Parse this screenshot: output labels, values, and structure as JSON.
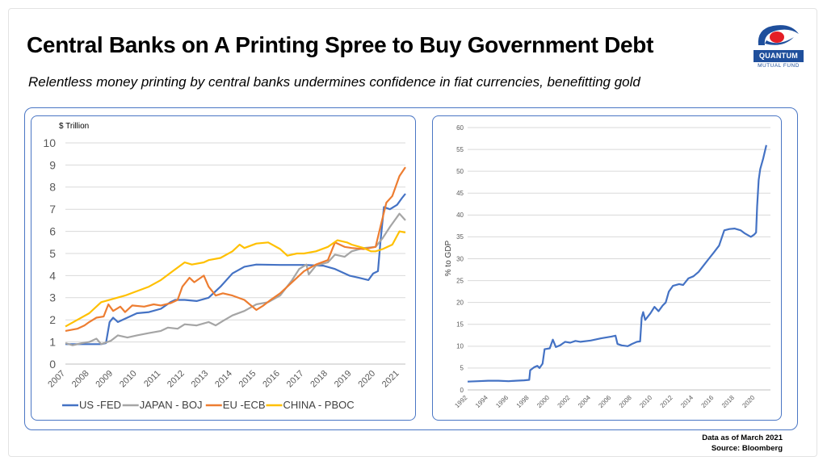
{
  "header": {
    "title": "Central Banks on A Printing Spree to Buy Government Debt",
    "subtitle": "Relentless money printing by central banks undermines confidence in fiat currencies, benefitting gold"
  },
  "logo": {
    "name": "QUANTUM",
    "tagline": "MUTUAL FUND",
    "colors": {
      "blue": "#1f4f9c",
      "red": "#e41e26"
    }
  },
  "footer": {
    "note": "Data as of March 2021",
    "source": "Source: Bloomberg"
  },
  "colors": {
    "panel_border": "#4a76c4",
    "grid": "#d9d9d9"
  },
  "chart_data": [
    {
      "type": "line",
      "ylabel": "$ Trillion",
      "xlim": [
        2007,
        2021.25
      ],
      "ylim": [
        0,
        10
      ],
      "yticks": [
        0,
        1,
        2,
        3,
        4,
        5,
        6,
        7,
        8,
        9,
        10
      ],
      "xticks": [
        "2007",
        "2008",
        "2009",
        "2010",
        "2011",
        "2012",
        "2013",
        "2014",
        "2015",
        "2016",
        "2017",
        "2018",
        "2019",
        "2020",
        "2021"
      ],
      "legend": "bottom",
      "grid": true,
      "series": [
        {
          "name": "US -FED",
          "color": "#4472c4",
          "points": [
            [
              2007,
              0.9
            ],
            [
              2007.5,
              0.9
            ],
            [
              2008.0,
              0.9
            ],
            [
              2008.5,
              0.9
            ],
            [
              2008.7,
              0.95
            ],
            [
              2008.85,
              1.9
            ],
            [
              2009.0,
              2.1
            ],
            [
              2009.2,
              1.9
            ],
            [
              2009.5,
              2.05
            ],
            [
              2010.0,
              2.3
            ],
            [
              2010.5,
              2.35
            ],
            [
              2011.0,
              2.5
            ],
            [
              2011.4,
              2.8
            ],
            [
              2011.6,
              2.9
            ],
            [
              2012.0,
              2.9
            ],
            [
              2012.5,
              2.85
            ],
            [
              2013.0,
              3.0
            ],
            [
              2013.5,
              3.5
            ],
            [
              2014.0,
              4.1
            ],
            [
              2014.5,
              4.4
            ],
            [
              2015.0,
              4.5
            ],
            [
              2016.0,
              4.48
            ],
            [
              2017.0,
              4.48
            ],
            [
              2017.8,
              4.45
            ],
            [
              2018.3,
              4.3
            ],
            [
              2018.9,
              4.0
            ],
            [
              2019.3,
              3.9
            ],
            [
              2019.7,
              3.8
            ],
            [
              2019.9,
              4.1
            ],
            [
              2020.1,
              4.2
            ],
            [
              2020.2,
              5.5
            ],
            [
              2020.35,
              7.1
            ],
            [
              2020.6,
              7.0
            ],
            [
              2020.9,
              7.2
            ],
            [
              2021.1,
              7.5
            ],
            [
              2021.25,
              7.7
            ]
          ]
        },
        {
          "name": "JAPAN - BOJ",
          "color": "#a5a5a5",
          "points": [
            [
              2007,
              0.95
            ],
            [
              2007.3,
              0.85
            ],
            [
              2007.7,
              0.95
            ],
            [
              2008.0,
              1.0
            ],
            [
              2008.3,
              1.15
            ],
            [
              2008.5,
              0.9
            ],
            [
              2008.9,
              1.05
            ],
            [
              2009.2,
              1.3
            ],
            [
              2009.6,
              1.2
            ],
            [
              2010.0,
              1.3
            ],
            [
              2010.5,
              1.4
            ],
            [
              2011.0,
              1.5
            ],
            [
              2011.3,
              1.65
            ],
            [
              2011.7,
              1.6
            ],
            [
              2012.0,
              1.8
            ],
            [
              2012.5,
              1.75
            ],
            [
              2013.0,
              1.9
            ],
            [
              2013.3,
              1.75
            ],
            [
              2013.6,
              1.95
            ],
            [
              2014.0,
              2.2
            ],
            [
              2014.5,
              2.4
            ],
            [
              2015.0,
              2.7
            ],
            [
              2015.5,
              2.8
            ],
            [
              2016.0,
              3.1
            ],
            [
              2016.5,
              3.8
            ],
            [
              2016.8,
              4.3
            ],
            [
              2017.1,
              4.5
            ],
            [
              2017.2,
              4.05
            ],
            [
              2017.5,
              4.45
            ],
            [
              2018.0,
              4.6
            ],
            [
              2018.3,
              4.95
            ],
            [
              2018.7,
              4.85
            ],
            [
              2019.0,
              5.1
            ],
            [
              2019.5,
              5.25
            ],
            [
              2020.0,
              5.3
            ],
            [
              2020.3,
              5.7
            ],
            [
              2020.6,
              6.2
            ],
            [
              2021.0,
              6.8
            ],
            [
              2021.25,
              6.5
            ]
          ]
        },
        {
          "name": "EU -ECB",
          "color": "#ed7d31",
          "points": [
            [
              2007,
              1.5
            ],
            [
              2007.5,
              1.6
            ],
            [
              2007.8,
              1.75
            ],
            [
              2008.0,
              1.9
            ],
            [
              2008.3,
              2.1
            ],
            [
              2008.6,
              2.15
            ],
            [
              2008.8,
              2.7
            ],
            [
              2009.0,
              2.4
            ],
            [
              2009.3,
              2.6
            ],
            [
              2009.5,
              2.35
            ],
            [
              2009.8,
              2.65
            ],
            [
              2010.3,
              2.6
            ],
            [
              2010.7,
              2.7
            ],
            [
              2011.0,
              2.65
            ],
            [
              2011.4,
              2.75
            ],
            [
              2011.7,
              2.9
            ],
            [
              2011.9,
              3.5
            ],
            [
              2012.2,
              3.9
            ],
            [
              2012.4,
              3.7
            ],
            [
              2012.8,
              4.0
            ],
            [
              2013.0,
              3.5
            ],
            [
              2013.3,
              3.1
            ],
            [
              2013.6,
              3.2
            ],
            [
              2014.0,
              3.1
            ],
            [
              2014.5,
              2.9
            ],
            [
              2015.0,
              2.45
            ],
            [
              2015.3,
              2.65
            ],
            [
              2015.6,
              2.9
            ],
            [
              2016.0,
              3.2
            ],
            [
              2016.5,
              3.7
            ],
            [
              2017.0,
              4.2
            ],
            [
              2017.5,
              4.5
            ],
            [
              2018.0,
              4.7
            ],
            [
              2018.3,
              5.5
            ],
            [
              2018.7,
              5.3
            ],
            [
              2019.0,
              5.25
            ],
            [
              2019.5,
              5.2
            ],
            [
              2020.0,
              5.3
            ],
            [
              2020.2,
              6.2
            ],
            [
              2020.45,
              7.3
            ],
            [
              2020.7,
              7.6
            ],
            [
              2021.0,
              8.5
            ],
            [
              2021.25,
              8.9
            ]
          ]
        },
        {
          "name": "CHINA - PBOC",
          "color": "#ffc000",
          "points": [
            [
              2007,
              1.7
            ],
            [
              2007.5,
              2.0
            ],
            [
              2008.0,
              2.3
            ],
            [
              2008.5,
              2.8
            ],
            [
              2009.0,
              2.95
            ],
            [
              2009.5,
              3.1
            ],
            [
              2010.0,
              3.3
            ],
            [
              2010.5,
              3.5
            ],
            [
              2011.0,
              3.8
            ],
            [
              2011.5,
              4.2
            ],
            [
              2012.0,
              4.6
            ],
            [
              2012.3,
              4.5
            ],
            [
              2012.8,
              4.6
            ],
            [
              2013.0,
              4.7
            ],
            [
              2013.5,
              4.8
            ],
            [
              2014.0,
              5.1
            ],
            [
              2014.3,
              5.4
            ],
            [
              2014.5,
              5.25
            ],
            [
              2015.0,
              5.45
            ],
            [
              2015.5,
              5.5
            ],
            [
              2016.0,
              5.2
            ],
            [
              2016.3,
              4.9
            ],
            [
              2016.7,
              5.0
            ],
            [
              2017.0,
              5.0
            ],
            [
              2017.5,
              5.1
            ],
            [
              2018.0,
              5.3
            ],
            [
              2018.4,
              5.6
            ],
            [
              2018.8,
              5.5
            ],
            [
              2019.0,
              5.4
            ],
            [
              2019.5,
              5.25
            ],
            [
              2019.8,
              5.1
            ],
            [
              2020.0,
              5.1
            ],
            [
              2020.3,
              5.2
            ],
            [
              2020.7,
              5.4
            ],
            [
              2021.0,
              6.0
            ],
            [
              2021.25,
              5.95
            ]
          ]
        }
      ]
    },
    {
      "type": "line",
      "ylabel": "% to GDP",
      "xlim": [
        1992,
        2021.5
      ],
      "ylim": [
        0,
        60
      ],
      "yticks": [
        0,
        5,
        10,
        15,
        20,
        25,
        30,
        35,
        40,
        45,
        50,
        55,
        60
      ],
      "xticks": [
        "1992",
        "1994",
        "1996",
        "1998",
        "2000",
        "2002",
        "2004",
        "2006",
        "2008",
        "2010",
        "2012",
        "2014",
        "2016",
        "2018",
        "2020"
      ],
      "grid": true,
      "series": [
        {
          "color": "#4472c4",
          "points": [
            [
              1992.0,
              1.9
            ],
            [
              1993.0,
              2.0
            ],
            [
              1994.0,
              2.1
            ],
            [
              1995.0,
              2.1
            ],
            [
              1996.0,
              2.0
            ],
            [
              1996.7,
              2.1
            ],
            [
              1997.5,
              2.2
            ],
            [
              1998.0,
              2.3
            ],
            [
              1998.1,
              4.5
            ],
            [
              1998.5,
              5.2
            ],
            [
              1998.8,
              5.5
            ],
            [
              1999.0,
              5.0
            ],
            [
              1999.3,
              6.0
            ],
            [
              1999.5,
              9.3
            ],
            [
              2000.0,
              9.5
            ],
            [
              2000.3,
              11.5
            ],
            [
              2000.6,
              9.8
            ],
            [
              2001.0,
              10.2
            ],
            [
              2001.5,
              11.0
            ],
            [
              2002.0,
              10.8
            ],
            [
              2002.5,
              11.2
            ],
            [
              2003.0,
              11.0
            ],
            [
              2004.0,
              11.3
            ],
            [
              2005.0,
              11.8
            ],
            [
              2006.0,
              12.2
            ],
            [
              2006.4,
              12.4
            ],
            [
              2006.6,
              10.5
            ],
            [
              2007.0,
              10.2
            ],
            [
              2007.6,
              10.0
            ],
            [
              2008.0,
              10.5
            ],
            [
              2008.5,
              11.0
            ],
            [
              2008.8,
              11.1
            ],
            [
              2008.95,
              16.5
            ],
            [
              2009.1,
              17.8
            ],
            [
              2009.3,
              16.0
            ],
            [
              2009.8,
              17.5
            ],
            [
              2010.2,
              19.0
            ],
            [
              2010.6,
              18.0
            ],
            [
              2011.0,
              19.3
            ],
            [
              2011.3,
              20.0
            ],
            [
              2011.6,
              22.5
            ],
            [
              2012.0,
              23.8
            ],
            [
              2012.6,
              24.2
            ],
            [
              2013.0,
              24.0
            ],
            [
              2013.5,
              25.5
            ],
            [
              2014.0,
              26.0
            ],
            [
              2014.5,
              27.0
            ],
            [
              2015.0,
              28.5
            ],
            [
              2015.5,
              30.0
            ],
            [
              2016.0,
              31.5
            ],
            [
              2016.5,
              33.0
            ],
            [
              2017.0,
              36.5
            ],
            [
              2017.5,
              36.8
            ],
            [
              2018.0,
              36.9
            ],
            [
              2018.6,
              36.5
            ],
            [
              2019.0,
              35.8
            ],
            [
              2019.6,
              35.0
            ],
            [
              2019.9,
              35.5
            ],
            [
              2020.1,
              36.0
            ],
            [
              2020.2,
              42.0
            ],
            [
              2020.35,
              48.0
            ],
            [
              2020.5,
              50.5
            ],
            [
              2020.8,
              53.0
            ],
            [
              2021.1,
              56.0
            ]
          ]
        }
      ]
    }
  ]
}
